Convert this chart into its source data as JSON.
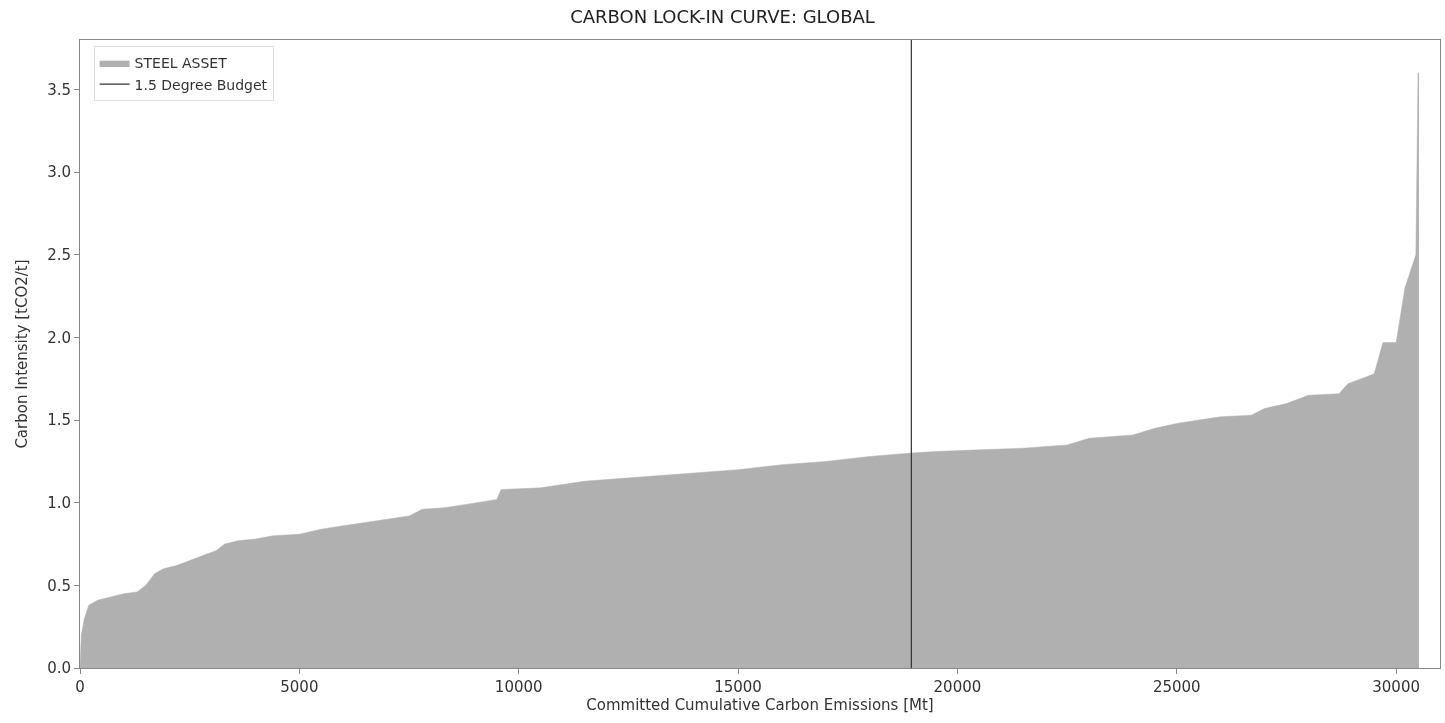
{
  "chart_data": {
    "type": "area",
    "title": "CARBON LOCK-IN CURVE: GLOBAL",
    "xlabel": "Committed Cumulative Carbon Emissions [Mt]",
    "ylabel": "Carbon Intensity [tCO2/t]",
    "x": [
      0,
      30,
      100,
      200,
      400,
      700,
      1000,
      1300,
      1500,
      1700,
      1900,
      2200,
      2500,
      2800,
      3100,
      3300,
      3600,
      4000,
      4400,
      5000,
      5500,
      6000,
      6500,
      7000,
      7500,
      7800,
      8300,
      8800,
      9500,
      9600,
      10500,
      11000,
      11500,
      12000,
      13000,
      14000,
      15000,
      16000,
      17000,
      18000,
      18900,
      19500,
      20500,
      21500,
      22500,
      23000,
      24000,
      24500,
      25000,
      25500,
      26000,
      26700,
      27000,
      27500,
      28000,
      28700,
      28900,
      29300,
      29500,
      29700,
      30000,
      30050,
      30200,
      30450,
      30500,
      30520
    ],
    "series": [
      {
        "name": "STEEL ASSET",
        "color": "#b0b0b0",
        "values": [
          0,
          0.2,
          0.3,
          0.38,
          0.41,
          0.43,
          0.45,
          0.46,
          0.5,
          0.57,
          0.6,
          0.62,
          0.65,
          0.68,
          0.71,
          0.75,
          0.77,
          0.78,
          0.8,
          0.81,
          0.84,
          0.86,
          0.88,
          0.9,
          0.92,
          0.96,
          0.97,
          0.99,
          1.02,
          1.08,
          1.09,
          1.11,
          1.13,
          1.14,
          1.16,
          1.18,
          1.2,
          1.23,
          1.25,
          1.28,
          1.3,
          1.31,
          1.32,
          1.33,
          1.35,
          1.39,
          1.41,
          1.45,
          1.48,
          1.5,
          1.52,
          1.53,
          1.57,
          1.6,
          1.65,
          1.66,
          1.72,
          1.76,
          1.78,
          1.97,
          1.97,
          2.05,
          2.3,
          2.5,
          3.6,
          3.6
        ]
      }
    ],
    "ref_lines": [
      {
        "axis": "x",
        "value": 18950,
        "label": "1.5 Degree Budget",
        "color": "#333333"
      }
    ],
    "xlim": [
      0,
      31000
    ],
    "xticks": [
      0,
      5000,
      10000,
      15000,
      20000,
      25000,
      30000
    ],
    "ylim": [
      0,
      3.8
    ],
    "yticks": [
      {
        "value": 0,
        "label": "0.0"
      },
      0.5,
      {
        "value": 1,
        "label": "1.0"
      },
      1.5,
      {
        "value": 2,
        "label": "2.0"
      },
      2.5,
      {
        "value": 3,
        "label": "3.0"
      },
      3.5
    ],
    "legend": "top left"
  }
}
